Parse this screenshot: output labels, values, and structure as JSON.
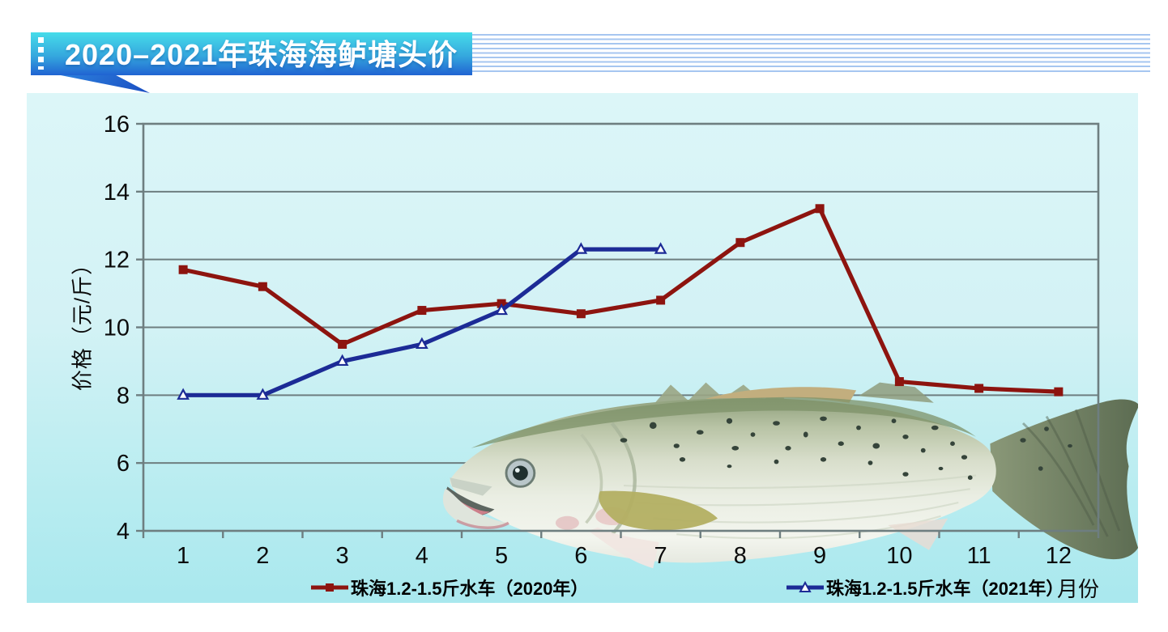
{
  "banner": {
    "title": "2020–2021年珠海海鲈塘头价"
  },
  "axis_titles": {
    "y": "价格（元/斤）",
    "x": "月份"
  },
  "chart_data": {
    "type": "line",
    "title": "2020–2021年珠海海鲈塘头价",
    "categories": [
      "1",
      "2",
      "3",
      "4",
      "5",
      "6",
      "7",
      "8",
      "9",
      "10",
      "11",
      "12"
    ],
    "xlabel": "月份",
    "ylabel": "价格（元/斤）",
    "ylim": [
      4,
      16
    ],
    "ytick_step": 2,
    "grid": "horizontal",
    "legend_position": "bottom",
    "series": [
      {
        "name": "珠海1.2-1.5斤水车（2020年）",
        "color": "#8d140f",
        "marker": "filled-square",
        "values": [
          11.7,
          11.2,
          9.5,
          10.5,
          10.7,
          10.4,
          10.8,
          12.5,
          13.5,
          8.4,
          8.2,
          8.1
        ]
      },
      {
        "name": "珠海1.2-1.5斤水车（2021年）",
        "color": "#1c2b96",
        "marker": "open-triangle",
        "values": [
          8.0,
          8.0,
          9.0,
          9.5,
          10.5,
          12.3,
          12.3
        ]
      }
    ]
  },
  "colors": {
    "banner_top": "#46dcea",
    "banner_bottom": "#2063d2",
    "stripe": "#a6c6f0",
    "panel_top": "#dcf6f8",
    "panel_bottom": "#a9e8ee",
    "grid_line": "#6e7e80",
    "axis_text": "#0b0b0b"
  }
}
